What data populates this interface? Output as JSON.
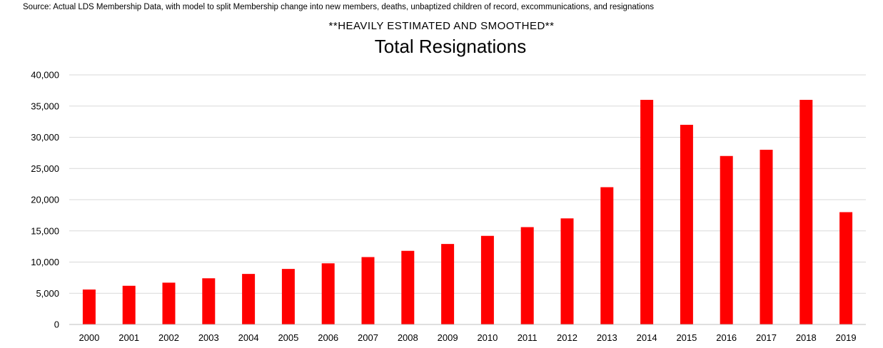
{
  "source_note": "Source: Actual LDS Membership Data, with model to split Membership change into new members, deaths, unbaptized children of record, excommunications, and resignations",
  "chart_data": {
    "type": "bar",
    "title": "Total Resignations",
    "subtitle": "**HEAVILY ESTIMATED AND SMOOTHED**",
    "xlabel": "",
    "ylabel": "",
    "categories": [
      "2000",
      "2001",
      "2002",
      "2003",
      "2004",
      "2005",
      "2006",
      "2007",
      "2008",
      "2009",
      "2010",
      "2011",
      "2012",
      "2013",
      "2014",
      "2015",
      "2016",
      "2017",
      "2018",
      "2019"
    ],
    "values": [
      5600,
      6200,
      6700,
      7400,
      8100,
      8900,
      9800,
      10800,
      11800,
      12900,
      14200,
      15600,
      17000,
      22000,
      36000,
      32000,
      27000,
      28000,
      36000,
      18000
    ],
    "ylim": [
      0,
      40000
    ],
    "yticks": [
      0,
      5000,
      10000,
      15000,
      20000,
      25000,
      30000,
      35000,
      40000
    ],
    "ytick_labels": [
      "0",
      "5,000",
      "10,000",
      "15,000",
      "20,000",
      "25,000",
      "30,000",
      "35,000",
      "40,000"
    ],
    "bar_color": "#ff0000",
    "grid": true,
    "legend": "none"
  }
}
